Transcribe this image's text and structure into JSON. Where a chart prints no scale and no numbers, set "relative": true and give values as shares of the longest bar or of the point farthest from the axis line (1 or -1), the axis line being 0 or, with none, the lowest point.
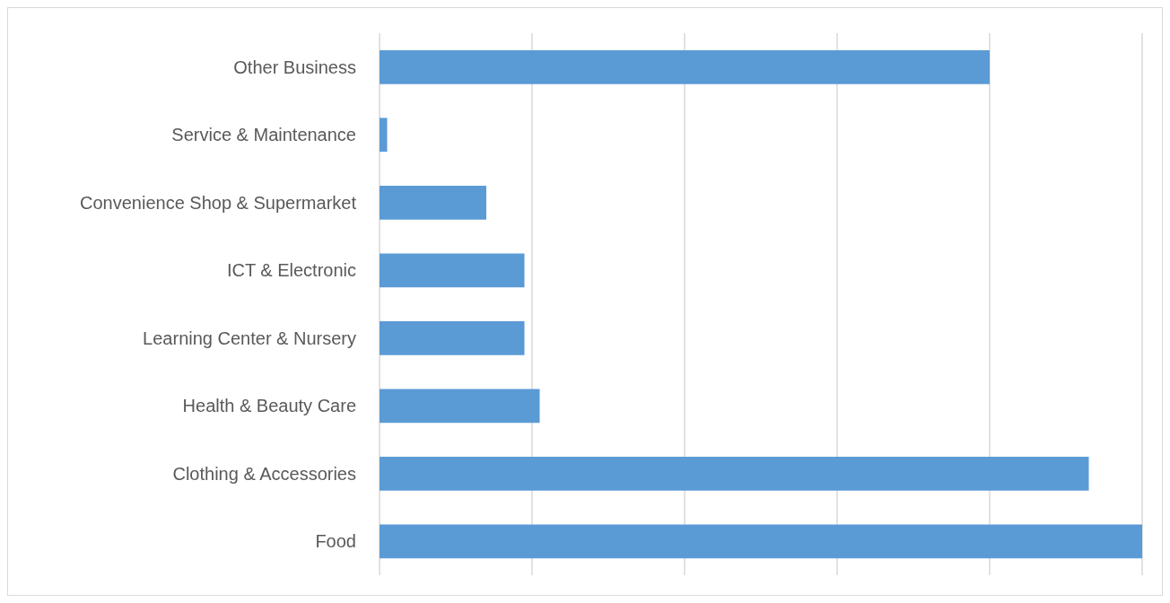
{
  "chart_data": {
    "type": "bar",
    "orientation": "horizontal",
    "relative": true,
    "categories": [
      "Other Business",
      "Service & Maintenance",
      "Convenience Shop & Supermarket",
      "ICT & Electronic",
      "Learning Center & Nursery",
      "Health & Beauty Care",
      "Clothing & Accessories",
      "Food"
    ],
    "values": [
      0.8,
      0.01,
      0.14,
      0.19,
      0.19,
      0.21,
      0.93,
      1
    ],
    "color": "#5b9bd5",
    "grid": "x"
  }
}
